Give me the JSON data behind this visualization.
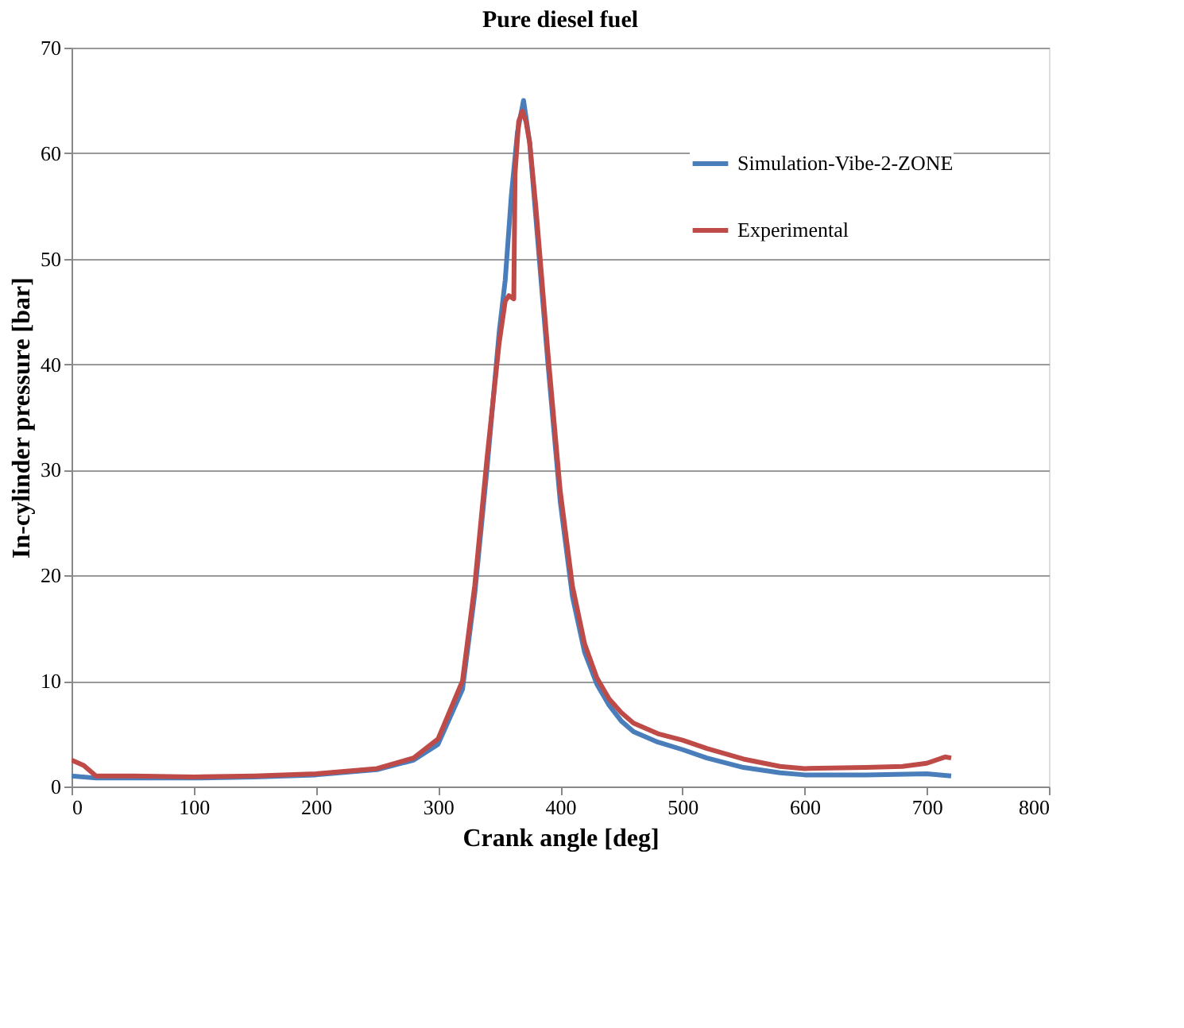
{
  "chart_data": {
    "type": "line",
    "title": "Pure diesel fuel",
    "xlabel": "Crank angle [deg]",
    "ylabel": "In-cylinder pressure [bar]",
    "xlim": [
      0,
      800
    ],
    "xticks": [
      0,
      100,
      200,
      300,
      400,
      500,
      600,
      700,
      800
    ],
    "ylim": [
      0,
      70
    ],
    "yticks": [
      0,
      10,
      20,
      30,
      40,
      50,
      60,
      70
    ],
    "grid": "y",
    "legend": "top right",
    "marker": "none",
    "line_style": "solid",
    "series": [
      {
        "name": "Simulation-Vibe-2-ZONE",
        "color": "#4a7ebb",
        "x": [
          0,
          20,
          50,
          100,
          150,
          200,
          250,
          280,
          300,
          320,
          330,
          340,
          350,
          355,
          360,
          365,
          370,
          375,
          380,
          390,
          400,
          410,
          420,
          430,
          440,
          450,
          460,
          480,
          500,
          520,
          550,
          580,
          600,
          650,
          700,
          720
        ],
        "values": [
          1.0,
          0.8,
          0.8,
          0.8,
          0.9,
          1.1,
          1.6,
          2.5,
          4.0,
          9.2,
          18.2,
          30,
          43,
          48,
          56,
          62,
          65,
          61,
          54,
          40,
          27,
          18,
          12.7,
          9.7,
          7.7,
          6.2,
          5.2,
          4.2,
          3.5,
          2.7,
          1.8,
          1.3,
          1.1,
          1.1,
          1.2,
          1.0
        ]
      },
      {
        "name": "Experimental",
        "color": "#be4b48",
        "x": [
          0,
          10,
          20,
          50,
          100,
          150,
          200,
          250,
          280,
          300,
          320,
          330,
          340,
          350,
          355,
          358,
          362,
          363,
          366,
          369,
          372,
          375,
          380,
          390,
          400,
          410,
          420,
          430,
          440,
          450,
          460,
          480,
          500,
          520,
          550,
          580,
          600,
          650,
          680,
          700,
          715,
          720
        ],
        "values": [
          2.5,
          2.0,
          1.0,
          1.0,
          0.9,
          1.0,
          1.2,
          1.7,
          2.7,
          4.5,
          10,
          19,
          31,
          42,
          46,
          46.5,
          46.2,
          58,
          63,
          64,
          63,
          61,
          55,
          41,
          28,
          19,
          13.5,
          10.3,
          8.3,
          7,
          6,
          5,
          4.4,
          3.6,
          2.6,
          1.9,
          1.7,
          1.8,
          1.9,
          2.2,
          2.8,
          2.7
        ]
      }
    ]
  }
}
